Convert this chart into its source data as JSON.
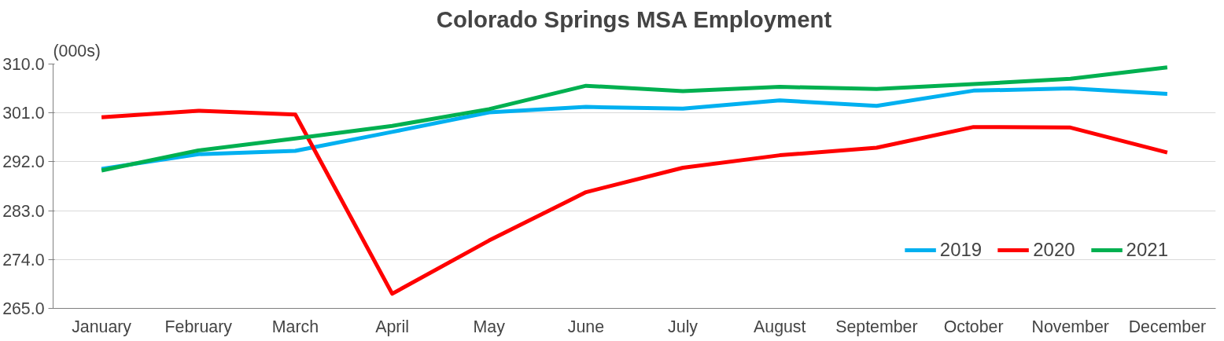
{
  "chart_data": {
    "type": "line",
    "title": "Colorado Springs MSA Employment",
    "ylabel": "(000s)",
    "categories": [
      "January",
      "February",
      "March",
      "April",
      "May",
      "June",
      "July",
      "August",
      "September",
      "October",
      "November",
      "December"
    ],
    "series": [
      {
        "name": "2019",
        "color": "#00b0f0",
        "values": [
          290.7,
          293.4,
          294.0,
          297.5,
          301.1,
          302.1,
          301.8,
          303.3,
          302.3,
          305.1,
          305.5,
          304.5
        ]
      },
      {
        "name": "2020",
        "color": "#ff0000",
        "values": [
          300.2,
          301.4,
          300.7,
          267.7,
          277.5,
          286.4,
          290.9,
          293.2,
          294.6,
          298.4,
          298.3,
          293.7
        ]
      },
      {
        "name": "2021",
        "color": "#00b050",
        "values": [
          290.4,
          294.1,
          296.3,
          298.6,
          301.7,
          306.0,
          305.0,
          305.8,
          305.4,
          306.3,
          307.3,
          309.4
        ]
      }
    ],
    "ylim": [
      265,
      310
    ],
    "yticks": [
      {
        "value": 265,
        "label": "265.0"
      },
      {
        "value": 274,
        "label": "274.0"
      },
      {
        "value": 283,
        "label": "283.0"
      },
      {
        "value": 292,
        "label": "292.0"
      },
      {
        "value": 301,
        "label": "301.0"
      },
      {
        "value": 310,
        "label": "310.0"
      }
    ],
    "grid": "y",
    "legend": "bottom right",
    "marker": "none",
    "line_style": "solid"
  }
}
